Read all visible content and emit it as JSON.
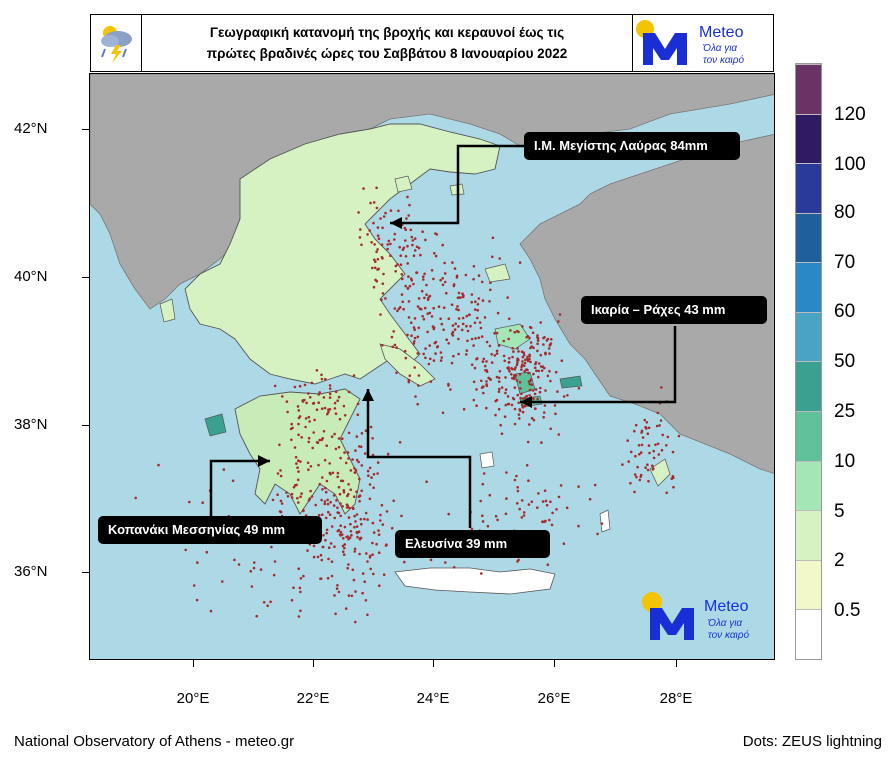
{
  "title": {
    "line1": "Γεωγραφική κατανομή της βροχής και κεραυνοί  έως τις",
    "line2": "πρώτες βραδινές ώρες του Σαββάτου 8 Ιανουαρίου 2022",
    "icon": "rain-lightning-icon"
  },
  "logo": {
    "name": "Meteo",
    "tagline1": "Όλα για",
    "tagline2": "τον καιρό",
    "colors": {
      "sun": "#f5c400",
      "mark": "#1a2ed6",
      "text": "#1a2ed6"
    }
  },
  "axes": {
    "y_ticks": [
      "42°N",
      "40°N",
      "38°N",
      "36°N"
    ],
    "x_ticks": [
      "20°E",
      "22°E",
      "24°E",
      "26°E",
      "28°E"
    ]
  },
  "callouts": [
    {
      "label": "Ι.Μ. Μεγίστης Λαύρας 84mm"
    },
    {
      "label": "Ικαρία – Ράχες 43 mm"
    },
    {
      "label": "Κοπανάκι Μεσσηνίας 49 mm"
    },
    {
      "label": "Ελευσίνα 39 mm"
    }
  ],
  "legend": {
    "labels": [
      "120",
      "100",
      "80",
      "70",
      "60",
      "50",
      "25",
      "10",
      "5",
      "2",
      "0.5"
    ],
    "colors": [
      "#6b3266",
      "#2f1b63",
      "#2a3a9a",
      "#1f5f9c",
      "#2a88c6",
      "#4aa3c4",
      "#3aa08f",
      "#5fc09a",
      "#a4e6b6",
      "#d6f2c2",
      "#f3f8c8",
      "#ffffff"
    ]
  },
  "colors": {
    "sea": "#add8e6",
    "land_other": "#a9a9a9",
    "lightning": "#a52a2a"
  },
  "footer": {
    "left": "National Observatory of Athens - meteo.gr",
    "right": "Dots: ZEUS lightning"
  }
}
